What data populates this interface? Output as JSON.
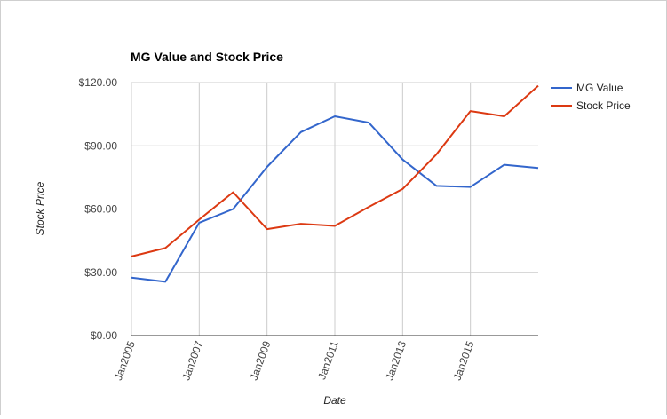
{
  "chart_data": {
    "type": "line",
    "title": "MG Value and Stock Price",
    "xlabel": "Date",
    "ylabel": "Stock Price",
    "x": [
      "2005-01",
      "2006-01",
      "2007-01",
      "2008-01",
      "2009-01",
      "2010-01",
      "2011-01",
      "2012-01",
      "2013-01",
      "2014-01",
      "2015-01",
      "2016-01",
      "2017-01"
    ],
    "x_ticks": [
      {
        "date": "2005-01",
        "label": "Jan2005"
      },
      {
        "date": "2007-01",
        "label": "Jan2007"
      },
      {
        "date": "2009-01",
        "label": "Jan2009"
      },
      {
        "date": "2011-01",
        "label": "Jan2011"
      },
      {
        "date": "2013-01",
        "label": "Jan2013"
      },
      {
        "date": "2015-01",
        "label": "Jan2015"
      }
    ],
    "ylim": [
      0,
      120
    ],
    "y_ticks": [
      {
        "value": 0,
        "label": "$0.00"
      },
      {
        "value": 30,
        "label": "$30.00"
      },
      {
        "value": 60,
        "label": "$60.00"
      },
      {
        "value": 90,
        "label": "$90.00"
      },
      {
        "value": 120,
        "label": "$120.00"
      }
    ],
    "series": [
      {
        "name": "MG Value",
        "color": "#3366cc",
        "values": [
          27.5,
          25.5,
          53.5,
          60,
          80,
          96.5,
          104,
          101,
          83.5,
          71,
          70.5,
          81,
          79.5
        ]
      },
      {
        "name": "Stock Price",
        "color": "#dc3912",
        "values": [
          37.5,
          41.5,
          55,
          68,
          50.5,
          53,
          52,
          61,
          69.5,
          86,
          106.5,
          104,
          118.5
        ]
      }
    ],
    "grid": true,
    "legend_position": "right"
  }
}
